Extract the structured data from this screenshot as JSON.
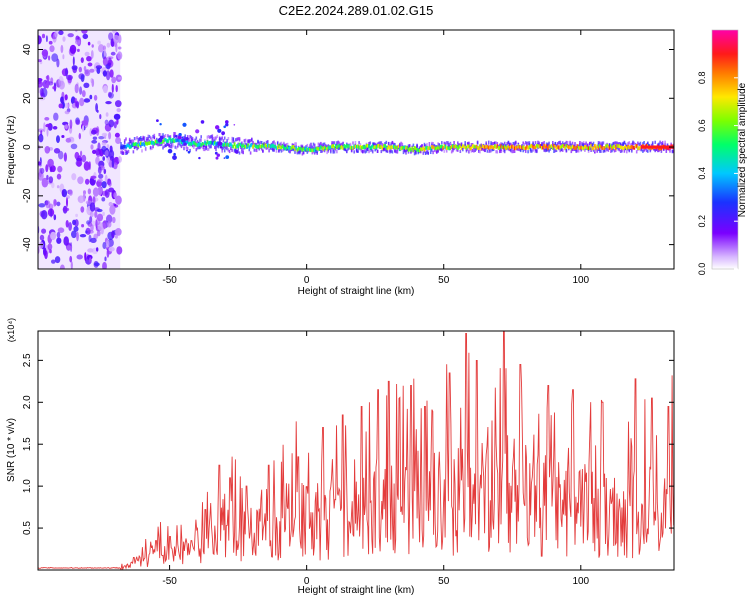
{
  "title": "C2E2.2024.289.01.02.G15",
  "colors": {
    "signal": "#e33b3b",
    "noise": "#6a1fe0",
    "axis": "#000000"
  },
  "chart_data": [
    {
      "type": "heatmap",
      "title": "C2E2.2024.289.01.02.G15",
      "xlabel": "Height of straight line (km)",
      "ylabel": "Frequency (Hz)",
      "xlim": [
        -98,
        134
      ],
      "ylim": [
        -50,
        48
      ],
      "x_ticks": [
        -50,
        0,
        50,
        100
      ],
      "y_ticks": [
        -40,
        -20,
        0,
        20,
        40
      ],
      "colorbar": {
        "label": "Normalized spectral amplitude",
        "range": [
          0,
          1
        ],
        "ticks": [
          "0.0",
          "0.2",
          "0.4",
          "0.6",
          "0.8"
        ],
        "colormap": "rainbow (purple-blue-cyan-green-yellow-red-magenta)"
      },
      "noise_band": {
        "x_from": -98,
        "x_to": -68,
        "description": "broadband low-amplitude noise"
      },
      "signal_track": {
        "x": [
          -68,
          -62,
          -56,
          -50,
          -45,
          -40,
          -35,
          -30,
          -25,
          -20,
          -10,
          0,
          10,
          20,
          30,
          40,
          50,
          60,
          70,
          80,
          90,
          100,
          110,
          120,
          130,
          134
        ],
        "frequency": [
          0,
          1,
          2,
          3,
          2,
          1,
          2,
          1,
          0.5,
          0.5,
          0,
          -1,
          0,
          0,
          0,
          -1,
          0,
          0,
          0,
          0,
          0,
          0,
          0,
          0,
          0,
          0
        ],
        "amplitude": [
          0.3,
          0.5,
          0.5,
          0.45,
          0.45,
          0.5,
          0.4,
          0.55,
          0.5,
          0.55,
          0.55,
          0.55,
          0.6,
          0.6,
          0.6,
          0.6,
          0.65,
          0.7,
          0.75,
          0.75,
          0.75,
          0.75,
          0.75,
          0.8,
          0.9,
          0.9
        ]
      }
    },
    {
      "type": "line",
      "xlabel": "Height of straight line (km)",
      "ylabel": "SNR (10 * v/v)",
      "y_multiplier": "(x10⁴)",
      "xlim": [
        -98,
        134
      ],
      "ylim": [
        0,
        2.85
      ],
      "x_ticks": [
        -50,
        0,
        50,
        100
      ],
      "y_ticks": [
        0.5,
        1.0,
        1.5,
        2.0,
        2.5
      ],
      "series": [
        {
          "x": [
            -98,
            -90,
            -80,
            -70,
            -65,
            -60,
            -55,
            -50,
            -45,
            -40,
            -35,
            -30,
            -25,
            -20,
            -15,
            -10,
            -5,
            0,
            5,
            10,
            15,
            20,
            25,
            30,
            35,
            40,
            45,
            50,
            55,
            60,
            65,
            70,
            75,
            80,
            85,
            90,
            95,
            100,
            105,
            110,
            115,
            120,
            125,
            130,
            134
          ],
          "y": [
            0.02,
            0.02,
            0.02,
            0.02,
            0.06,
            0.18,
            0.3,
            0.25,
            0.35,
            0.3,
            0.6,
            0.75,
            0.6,
            0.45,
            0.7,
            0.65,
            0.9,
            0.8,
            0.75,
            0.85,
            0.9,
            0.95,
            1.1,
            1.05,
            1.2,
            1.25,
            1.1,
            1.2,
            1.1,
            1.3,
            1.2,
            1.25,
            1.15,
            1.2,
            1.1,
            1.1,
            1.0,
            1.05,
            0.95,
            1.0,
            0.9,
            0.95,
            1.0,
            0.9,
            1.4
          ],
          "peaks": {
            "x": [
              -63,
              -55,
              -50,
              -42,
              -37,
              -32,
              -28,
              -22,
              -14,
              -3,
              6,
              13,
              20,
              26,
              30,
              38,
              43,
              52,
              58,
              62,
              72,
              78,
              88,
              97,
              108,
              120,
              126,
              132
            ],
            "y": [
              0.15,
              0.35,
              0.4,
              0.35,
              0.72,
              1.25,
              1.1,
              1.0,
              1.25,
              1.35,
              1.7,
              1.85,
              1.95,
              2.15,
              2.25,
              2.2,
              1.95,
              2.35,
              2.82,
              2.5,
              2.85,
              2.45,
              2.2,
              2.15,
              2.0,
              2.28,
              2.05,
              1.95
            ]
          }
        }
      ]
    }
  ]
}
